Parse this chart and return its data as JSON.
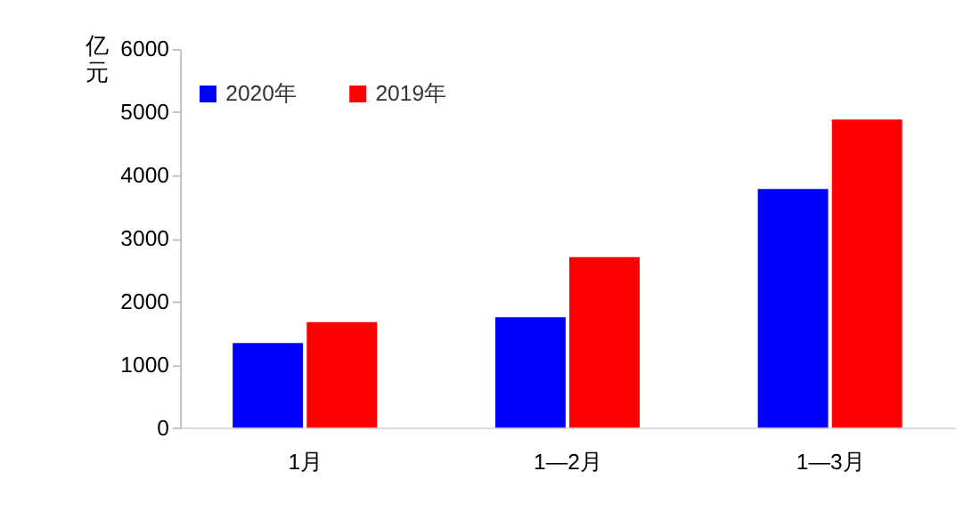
{
  "chart_data": {
    "type": "bar",
    "ylabel": "亿元",
    "categories": [
      "1月",
      "1—2月",
      "1—3月"
    ],
    "series": [
      {
        "name": "2020年",
        "color": "#0000ff",
        "values": [
          1340,
          1750,
          3780
        ]
      },
      {
        "name": "2019年",
        "color": "#ff0000",
        "values": [
          1670,
          2700,
          4880
        ]
      }
    ],
    "ylim": [
      0,
      6000
    ],
    "yticks": [
      0,
      1000,
      2000,
      3000,
      4000,
      5000,
      6000
    ],
    "grid": false,
    "legend": "top left"
  }
}
